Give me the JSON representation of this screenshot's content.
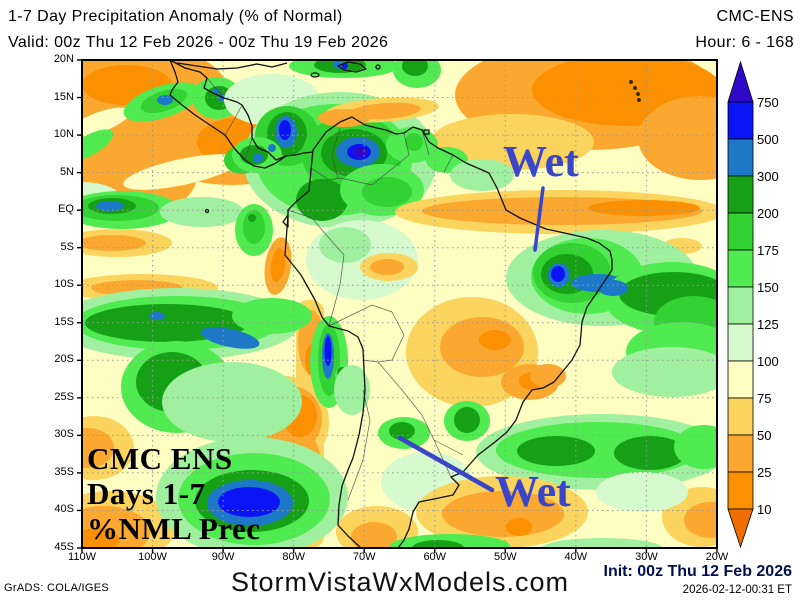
{
  "header": {
    "title": "1-7 Day Precipitation Anomaly (% of Normal)",
    "model": "CMC-ENS",
    "valid": "Valid: 00z Thu 12 Feb 2026 - 00z Thu 19 Feb 2026",
    "hour": "Hour: 6 - 168"
  },
  "map": {
    "lat_ticks": [
      "20N",
      "15N",
      "10N",
      "5N",
      "EQ",
      "5S",
      "10S",
      "15S",
      "20S",
      "25S",
      "30S",
      "35S",
      "40S",
      "45S"
    ],
    "lon_ticks": [
      "110W",
      "100W",
      "90W",
      "80W",
      "70W",
      "60W",
      "50W",
      "40W",
      "30W",
      "20W"
    ],
    "annotations": {
      "wet_upper": "Wet",
      "wet_lower": "Wet",
      "overlay_line1": "CMC ENS",
      "overlay_line2": "Days 1-7",
      "overlay_line3": "%NML Prec",
      "annotation_color": "#3A46C8"
    }
  },
  "colorbar": {
    "labels": [
      "750",
      "500",
      "300",
      "200",
      "175",
      "150",
      "125",
      "100",
      "75",
      "50",
      "25",
      "10"
    ],
    "block_order": [
      "500-750",
      "300-500",
      "200-300",
      "175-200",
      "150-175",
      "125-150",
      "100-125",
      "75-100",
      "50-75",
      "25-50",
      "10-25"
    ],
    "palette": {
      "gt750": "#3208C8",
      "500-750": "#0A14F5",
      "300-500": "#1E78C8",
      "200-300": "#16A016",
      "175-200": "#32D232",
      "150-175": "#50EB50",
      "125-150": "#A0F0A0",
      "100-125": "#D7F9CE",
      "75-100": "#FEFEC3",
      "50-75": "#FBD45E",
      "25-50": "#FBA830",
      "10-25": "#FB9000",
      "lt10": "#F06E00"
    }
  },
  "footer": {
    "credit": "GrADS: COLA/IGES",
    "site": "StormVistaWxModels.com",
    "init": "Init: 00z Thu 12 Feb 2026",
    "timestamp": "2026-02-12-00:31 ET"
  },
  "chart_data": {
    "type": "heatmap",
    "title": "1-7 Day Precipitation Anomaly (% of Normal)",
    "model": "CMC-ENS",
    "valid_start": "00z Thu 12 Feb 2026",
    "valid_end": "00z Thu 19 Feb 2026",
    "hour_range": "6 - 168",
    "init_time": "00z Thu 12 Feb 2026",
    "units": "% of normal precipitation",
    "region": "South America",
    "lon_axis_ticks_degW": [
      110,
      100,
      90,
      80,
      70,
      60,
      50,
      40,
      30,
      20
    ],
    "lat_axis_ticks": [
      "20N",
      "15N",
      "10N",
      "5N",
      "EQ",
      "5S",
      "10S",
      "15S",
      "20S",
      "25S",
      "30S",
      "35S",
      "40S",
      "45S"
    ],
    "colorbar_boundaries": [
      750,
      500,
      300,
      200,
      175,
      150,
      125,
      100,
      75,
      50,
      25,
      10
    ],
    "colorbar_orientation": "vertical-right",
    "annotations": [
      {
        "text": "Wet",
        "points_to": "northeast Brazil coast near 38W 6S"
      },
      {
        "text": "Wet",
        "points_to": "central Argentina near 63W 37S"
      },
      {
        "text": "CMC ENS Days 1-7 %NML Prec",
        "location": "bottom-left of map"
      }
    ],
    "notable_wet_features": [
      "Venezuela / eastern Colombia maximum exceeding 750% of normal",
      "Caribbean coast of Nicaragua and Panama above 300-500%",
      "Northeast Brazil coastal maximum above 300-500%",
      "Bolivian Andes strip above 300-500%",
      "South Pacific band near 20S and blue maximum near 88W 40S above 300-500%",
      "Atlantic band near 30S with greens 150-300%"
    ],
    "notable_dry_features": [
      "Tropical Atlantic band 10-18N below 25-50% of normal",
      "Equatorial Atlantic band near 2S below 25%",
      "Interior central Brazil patches below 25-50%",
      "Atacama / Chile coast and southeast Pacific below 50%",
      "Argentine Atlantic near 40S below 25-50%"
    ]
  }
}
